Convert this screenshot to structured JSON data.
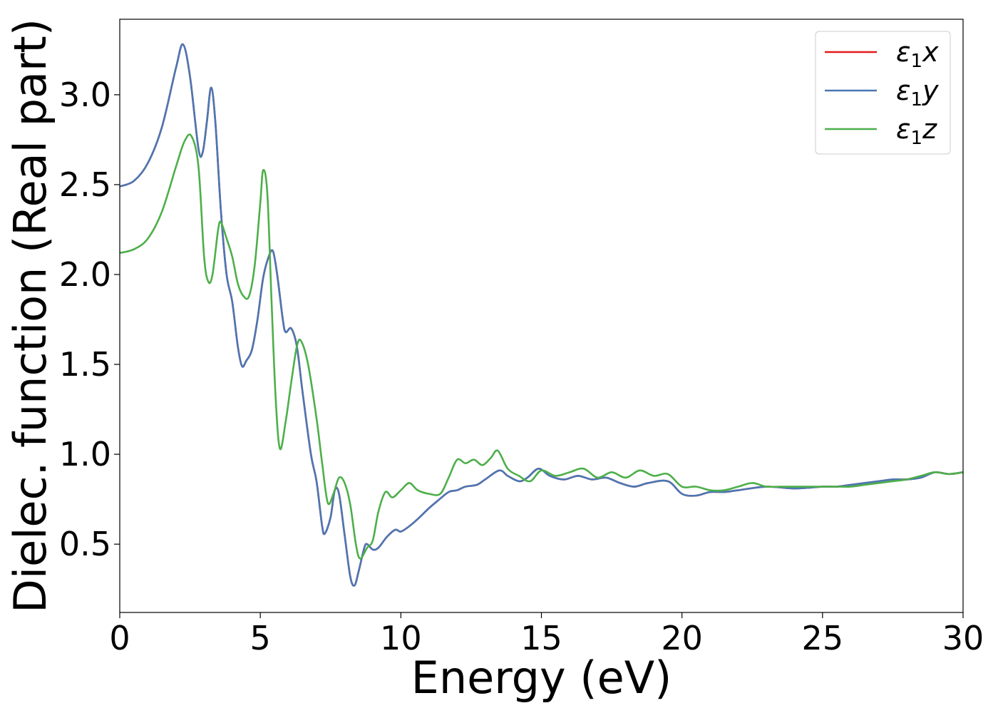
{
  "chart_data": {
    "type": "line",
    "title": "",
    "xlabel": "Energy (eV)",
    "ylabel": "Dielec. function (Real part)",
    "xlim": [
      0,
      30
    ],
    "ylim": [
      0.12,
      3.42
    ],
    "xticks": [
      0,
      5,
      10,
      15,
      20,
      25,
      30
    ],
    "xtick_labels": [
      "0",
      "5",
      "10",
      "15",
      "20",
      "25",
      "30"
    ],
    "yticks": [
      0.5,
      1.0,
      1.5,
      2.0,
      2.5,
      3.0
    ],
    "ytick_labels": [
      "0.5",
      "1.0",
      "1.5",
      "2.0",
      "2.5",
      "3.0"
    ],
    "grid": false,
    "legend_position": "top-right",
    "series": [
      {
        "name": "ε1x",
        "legend_base": "ε",
        "legend_sub": "1",
        "legend_var": "x",
        "color": "#e41a1c",
        "points": [
          [
            0,
            2.49
          ],
          [
            0.5,
            2.52
          ],
          [
            1.0,
            2.62
          ],
          [
            1.5,
            2.82
          ],
          [
            2.0,
            3.15
          ],
          [
            2.25,
            3.28
          ],
          [
            2.5,
            3.1
          ],
          [
            2.8,
            2.7
          ],
          [
            2.95,
            2.68
          ],
          [
            3.1,
            2.85
          ],
          [
            3.25,
            3.04
          ],
          [
            3.4,
            2.85
          ],
          [
            3.6,
            2.35
          ],
          [
            3.8,
            2.0
          ],
          [
            4.0,
            1.85
          ],
          [
            4.2,
            1.6
          ],
          [
            4.35,
            1.49
          ],
          [
            4.5,
            1.52
          ],
          [
            4.7,
            1.58
          ],
          [
            4.9,
            1.75
          ],
          [
            5.1,
            1.98
          ],
          [
            5.3,
            2.1
          ],
          [
            5.45,
            2.13
          ],
          [
            5.6,
            2.0
          ],
          [
            5.8,
            1.75
          ],
          [
            5.9,
            1.68
          ],
          [
            6.1,
            1.7
          ],
          [
            6.3,
            1.6
          ],
          [
            6.5,
            1.35
          ],
          [
            6.8,
            1.0
          ],
          [
            7.0,
            0.85
          ],
          [
            7.2,
            0.6
          ],
          [
            7.3,
            0.56
          ],
          [
            7.5,
            0.65
          ],
          [
            7.65,
            0.8
          ],
          [
            7.8,
            0.78
          ],
          [
            8.0,
            0.55
          ],
          [
            8.2,
            0.32
          ],
          [
            8.35,
            0.27
          ],
          [
            8.5,
            0.35
          ],
          [
            8.7,
            0.48
          ],
          [
            8.8,
            0.5
          ],
          [
            9.0,
            0.47
          ],
          [
            9.2,
            0.48
          ],
          [
            9.5,
            0.54
          ],
          [
            9.8,
            0.58
          ],
          [
            10.0,
            0.57
          ],
          [
            10.3,
            0.6
          ],
          [
            10.6,
            0.64
          ],
          [
            11.0,
            0.7
          ],
          [
            11.3,
            0.74
          ],
          [
            11.7,
            0.79
          ],
          [
            12.0,
            0.8
          ],
          [
            12.3,
            0.82
          ],
          [
            12.7,
            0.83
          ],
          [
            13.0,
            0.86
          ],
          [
            13.5,
            0.91
          ],
          [
            13.8,
            0.88
          ],
          [
            14.2,
            0.85
          ],
          [
            14.5,
            0.87
          ],
          [
            14.9,
            0.92
          ],
          [
            15.3,
            0.88
          ],
          [
            15.8,
            0.86
          ],
          [
            16.3,
            0.88
          ],
          [
            16.8,
            0.86
          ],
          [
            17.3,
            0.87
          ],
          [
            17.8,
            0.84
          ],
          [
            18.3,
            0.82
          ],
          [
            18.8,
            0.84
          ],
          [
            19.5,
            0.85
          ],
          [
            20.0,
            0.78
          ],
          [
            20.5,
            0.77
          ],
          [
            21.0,
            0.79
          ],
          [
            21.5,
            0.79
          ],
          [
            22.0,
            0.8
          ],
          [
            23.0,
            0.82
          ],
          [
            24.0,
            0.81
          ],
          [
            25.0,
            0.82
          ],
          [
            25.5,
            0.82
          ],
          [
            26.0,
            0.83
          ],
          [
            26.5,
            0.84
          ],
          [
            27.0,
            0.85
          ],
          [
            27.5,
            0.86
          ],
          [
            28.0,
            0.86
          ],
          [
            28.5,
            0.87
          ],
          [
            29.0,
            0.9
          ],
          [
            29.5,
            0.89
          ],
          [
            30.0,
            0.9
          ]
        ]
      },
      {
        "name": "ε1y",
        "legend_base": "ε",
        "legend_sub": "1",
        "legend_var": "y",
        "color": "#4a77b4",
        "points": [
          [
            0,
            2.49
          ],
          [
            0.5,
            2.52
          ],
          [
            1.0,
            2.62
          ],
          [
            1.5,
            2.82
          ],
          [
            2.0,
            3.15
          ],
          [
            2.25,
            3.28
          ],
          [
            2.5,
            3.1
          ],
          [
            2.8,
            2.7
          ],
          [
            2.95,
            2.68
          ],
          [
            3.1,
            2.85
          ],
          [
            3.25,
            3.04
          ],
          [
            3.4,
            2.85
          ],
          [
            3.6,
            2.35
          ],
          [
            3.8,
            2.0
          ],
          [
            4.0,
            1.85
          ],
          [
            4.2,
            1.6
          ],
          [
            4.35,
            1.49
          ],
          [
            4.5,
            1.52
          ],
          [
            4.7,
            1.58
          ],
          [
            4.9,
            1.75
          ],
          [
            5.1,
            1.98
          ],
          [
            5.3,
            2.1
          ],
          [
            5.45,
            2.13
          ],
          [
            5.6,
            2.0
          ],
          [
            5.8,
            1.75
          ],
          [
            5.9,
            1.68
          ],
          [
            6.1,
            1.7
          ],
          [
            6.3,
            1.6
          ],
          [
            6.5,
            1.35
          ],
          [
            6.8,
            1.0
          ],
          [
            7.0,
            0.85
          ],
          [
            7.2,
            0.6
          ],
          [
            7.3,
            0.56
          ],
          [
            7.5,
            0.65
          ],
          [
            7.65,
            0.8
          ],
          [
            7.8,
            0.78
          ],
          [
            8.0,
            0.55
          ],
          [
            8.2,
            0.32
          ],
          [
            8.35,
            0.27
          ],
          [
            8.5,
            0.35
          ],
          [
            8.7,
            0.48
          ],
          [
            8.8,
            0.5
          ],
          [
            9.0,
            0.47
          ],
          [
            9.2,
            0.48
          ],
          [
            9.5,
            0.54
          ],
          [
            9.8,
            0.58
          ],
          [
            10.0,
            0.57
          ],
          [
            10.3,
            0.6
          ],
          [
            10.6,
            0.64
          ],
          [
            11.0,
            0.7
          ],
          [
            11.3,
            0.74
          ],
          [
            11.7,
            0.79
          ],
          [
            12.0,
            0.8
          ],
          [
            12.3,
            0.82
          ],
          [
            12.7,
            0.83
          ],
          [
            13.0,
            0.86
          ],
          [
            13.5,
            0.91
          ],
          [
            13.8,
            0.88
          ],
          [
            14.2,
            0.85
          ],
          [
            14.5,
            0.87
          ],
          [
            14.9,
            0.92
          ],
          [
            15.3,
            0.88
          ],
          [
            15.8,
            0.86
          ],
          [
            16.3,
            0.88
          ],
          [
            16.8,
            0.86
          ],
          [
            17.3,
            0.87
          ],
          [
            17.8,
            0.84
          ],
          [
            18.3,
            0.82
          ],
          [
            18.8,
            0.84
          ],
          [
            19.5,
            0.85
          ],
          [
            20.0,
            0.78
          ],
          [
            20.5,
            0.77
          ],
          [
            21.0,
            0.79
          ],
          [
            21.5,
            0.79
          ],
          [
            22.0,
            0.8
          ],
          [
            23.0,
            0.82
          ],
          [
            24.0,
            0.81
          ],
          [
            25.0,
            0.82
          ],
          [
            25.5,
            0.82
          ],
          [
            26.0,
            0.83
          ],
          [
            26.5,
            0.84
          ],
          [
            27.0,
            0.85
          ],
          [
            27.5,
            0.86
          ],
          [
            28.0,
            0.86
          ],
          [
            28.5,
            0.87
          ],
          [
            29.0,
            0.9
          ],
          [
            29.5,
            0.89
          ],
          [
            30.0,
            0.9
          ]
        ]
      },
      {
        "name": "ε1z",
        "legend_base": "ε",
        "legend_sub": "1",
        "legend_var": "z",
        "color": "#4daf4a",
        "points": [
          [
            0,
            2.12
          ],
          [
            0.5,
            2.14
          ],
          [
            1.0,
            2.2
          ],
          [
            1.5,
            2.35
          ],
          [
            2.0,
            2.6
          ],
          [
            2.3,
            2.74
          ],
          [
            2.55,
            2.77
          ],
          [
            2.8,
            2.6
          ],
          [
            3.0,
            2.1
          ],
          [
            3.15,
            1.96
          ],
          [
            3.3,
            2.0
          ],
          [
            3.5,
            2.25
          ],
          [
            3.6,
            2.29
          ],
          [
            3.8,
            2.2
          ],
          [
            4.0,
            2.1
          ],
          [
            4.2,
            1.95
          ],
          [
            4.4,
            1.88
          ],
          [
            4.6,
            1.88
          ],
          [
            4.8,
            2.05
          ],
          [
            5.0,
            2.4
          ],
          [
            5.1,
            2.58
          ],
          [
            5.25,
            2.45
          ],
          [
            5.4,
            1.85
          ],
          [
            5.55,
            1.3
          ],
          [
            5.7,
            1.03
          ],
          [
            5.9,
            1.18
          ],
          [
            6.1,
            1.4
          ],
          [
            6.3,
            1.6
          ],
          [
            6.45,
            1.63
          ],
          [
            6.7,
            1.5
          ],
          [
            7.0,
            1.2
          ],
          [
            7.2,
            0.95
          ],
          [
            7.4,
            0.73
          ],
          [
            7.6,
            0.78
          ],
          [
            7.8,
            0.87
          ],
          [
            8.0,
            0.84
          ],
          [
            8.2,
            0.72
          ],
          [
            8.4,
            0.5
          ],
          [
            8.55,
            0.42
          ],
          [
            8.8,
            0.48
          ],
          [
            9.0,
            0.52
          ],
          [
            9.2,
            0.68
          ],
          [
            9.45,
            0.79
          ],
          [
            9.7,
            0.76
          ],
          [
            10.0,
            0.8
          ],
          [
            10.3,
            0.84
          ],
          [
            10.6,
            0.8
          ],
          [
            11.0,
            0.78
          ],
          [
            11.4,
            0.78
          ],
          [
            11.7,
            0.87
          ],
          [
            12.0,
            0.97
          ],
          [
            12.3,
            0.95
          ],
          [
            12.6,
            0.97
          ],
          [
            12.9,
            0.94
          ],
          [
            13.2,
            0.98
          ],
          [
            13.45,
            1.02
          ],
          [
            13.8,
            0.92
          ],
          [
            14.2,
            0.88
          ],
          [
            14.6,
            0.85
          ],
          [
            15.0,
            0.91
          ],
          [
            15.5,
            0.88
          ],
          [
            16.0,
            0.9
          ],
          [
            16.5,
            0.92
          ],
          [
            17.0,
            0.87
          ],
          [
            17.5,
            0.9
          ],
          [
            18.0,
            0.87
          ],
          [
            18.5,
            0.91
          ],
          [
            19.0,
            0.88
          ],
          [
            19.5,
            0.89
          ],
          [
            20.0,
            0.82
          ],
          [
            20.5,
            0.82
          ],
          [
            21.0,
            0.8
          ],
          [
            21.5,
            0.8
          ],
          [
            22.0,
            0.82
          ],
          [
            22.5,
            0.84
          ],
          [
            23.0,
            0.82
          ],
          [
            23.5,
            0.82
          ],
          [
            24.0,
            0.82
          ],
          [
            25.0,
            0.82
          ],
          [
            25.5,
            0.82
          ],
          [
            26.0,
            0.82
          ],
          [
            26.5,
            0.83
          ],
          [
            27.0,
            0.84
          ],
          [
            27.5,
            0.85
          ],
          [
            28.0,
            0.86
          ],
          [
            28.5,
            0.88
          ],
          [
            29.0,
            0.9
          ],
          [
            29.5,
            0.89
          ],
          [
            30.0,
            0.9
          ]
        ]
      }
    ]
  }
}
